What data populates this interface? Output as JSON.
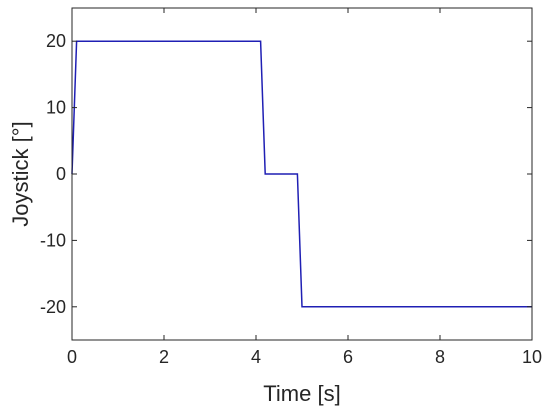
{
  "chart_data": {
    "type": "line",
    "xlabel": "Time [s]",
    "ylabel": "Joystick [°]",
    "xlim": [
      0,
      10
    ],
    "ylim": [
      -25,
      25
    ],
    "x_ticks": [
      0,
      2,
      4,
      6,
      8,
      10
    ],
    "y_ticks": [
      20,
      10,
      0,
      -10,
      -20
    ],
    "x_tick_labels": [
      "0",
      "2",
      "4",
      "6",
      "8",
      "10"
    ],
    "y_tick_labels": [
      "20",
      "10",
      "0",
      "-10",
      "-20"
    ],
    "grid": false,
    "series": [
      {
        "color": "#1f1fb4",
        "x": [
          0,
          0.1,
          4.1,
          4.2,
          4.9,
          5.0,
          10
        ],
        "y": [
          0,
          20,
          20,
          0,
          0,
          -20,
          -20
        ]
      }
    ]
  }
}
